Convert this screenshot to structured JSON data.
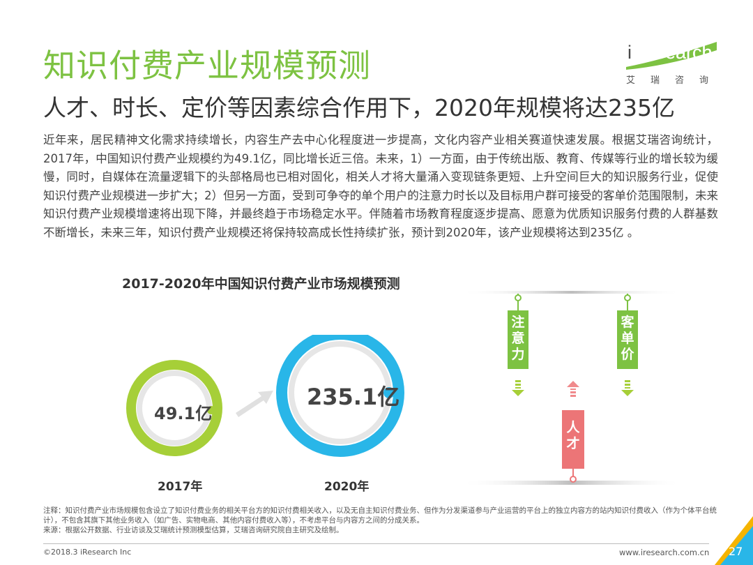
{
  "page": {
    "title": "知识付费产业规模预测",
    "subtitle": "人才、时长、定价等因素综合作用下，2020年规模将达235亿"
  },
  "logo": {
    "brand_prefix": "i",
    "brand_rest": "Research",
    "sub": "艾瑞咨询"
  },
  "body_text": "近年来，居民精神文化需求持续增长，内容生产去中心化程度进一步提高，文化内容产业相关赛道快速发展。根据艾瑞咨询统计，2017年，中国知识付费产业规模约为49.1亿，同比增长近三倍。未来，1）一方面，由于传统出版、教育、传媒等行业的增长较为缓慢，同时，自媒体在流量逻辑下的头部格局也已相对固化，相关人才将大量涌入变现链条更短、上升空间巨大的知识服务行业，促使知识付费产业规模进一步扩大；2）但另一方面，受到可争夺的单个用户的注意力时长以及目标用户群可接受的客单价范围限制，未来知识付费产业规模增速将出现下降，并最终趋于市场稳定水平。伴随着市场教育程度逐步提高、愿意为优质知识服务付费的人群基数不断增长，未来三年，知识付费产业规模还将保持较高成长性持续扩张，预计到2020年，该产业规模将达到235亿 。",
  "chart_data": {
    "type": "bubble",
    "title": "2017-2020年中国知识付费产业市场规模预测",
    "categories": [
      "2017年",
      "2020年"
    ],
    "values": [
      49.1,
      235.1
    ],
    "value_labels": [
      "49.1亿",
      "235.1亿"
    ],
    "colors": {
      "2017年": "#a6cf38",
      "2020年": "#29b6e8"
    }
  },
  "factors": {
    "attention": "注意力",
    "price": "客单价",
    "talent": "人才",
    "attention_color": "#7dc242",
    "talent_color": "#ec7577"
  },
  "notes": [
    "注释：知识付费产业市场规模包含设立了知识付费业务的相关平台方的知识付费相关收入，以及无自主知识付费业务、但作为分发渠道参与产业运营的平台上的独立内容方的站内知识付费收入（作为个体平台统计），不包含其旗下其他业务收入（如广告、实物电商、其他内容付费收入等），不考虑平台与内容方之间的分成关系。",
    "来源：根据公开数据、行业访谈及艾瑞统计预测模型估算，艾瑞咨询研究院自主研究及绘制。"
  ],
  "footer": {
    "copyright": "©2018.3 iResearch Inc",
    "url": "www.iresearch.com.cn",
    "page_number": "27"
  }
}
